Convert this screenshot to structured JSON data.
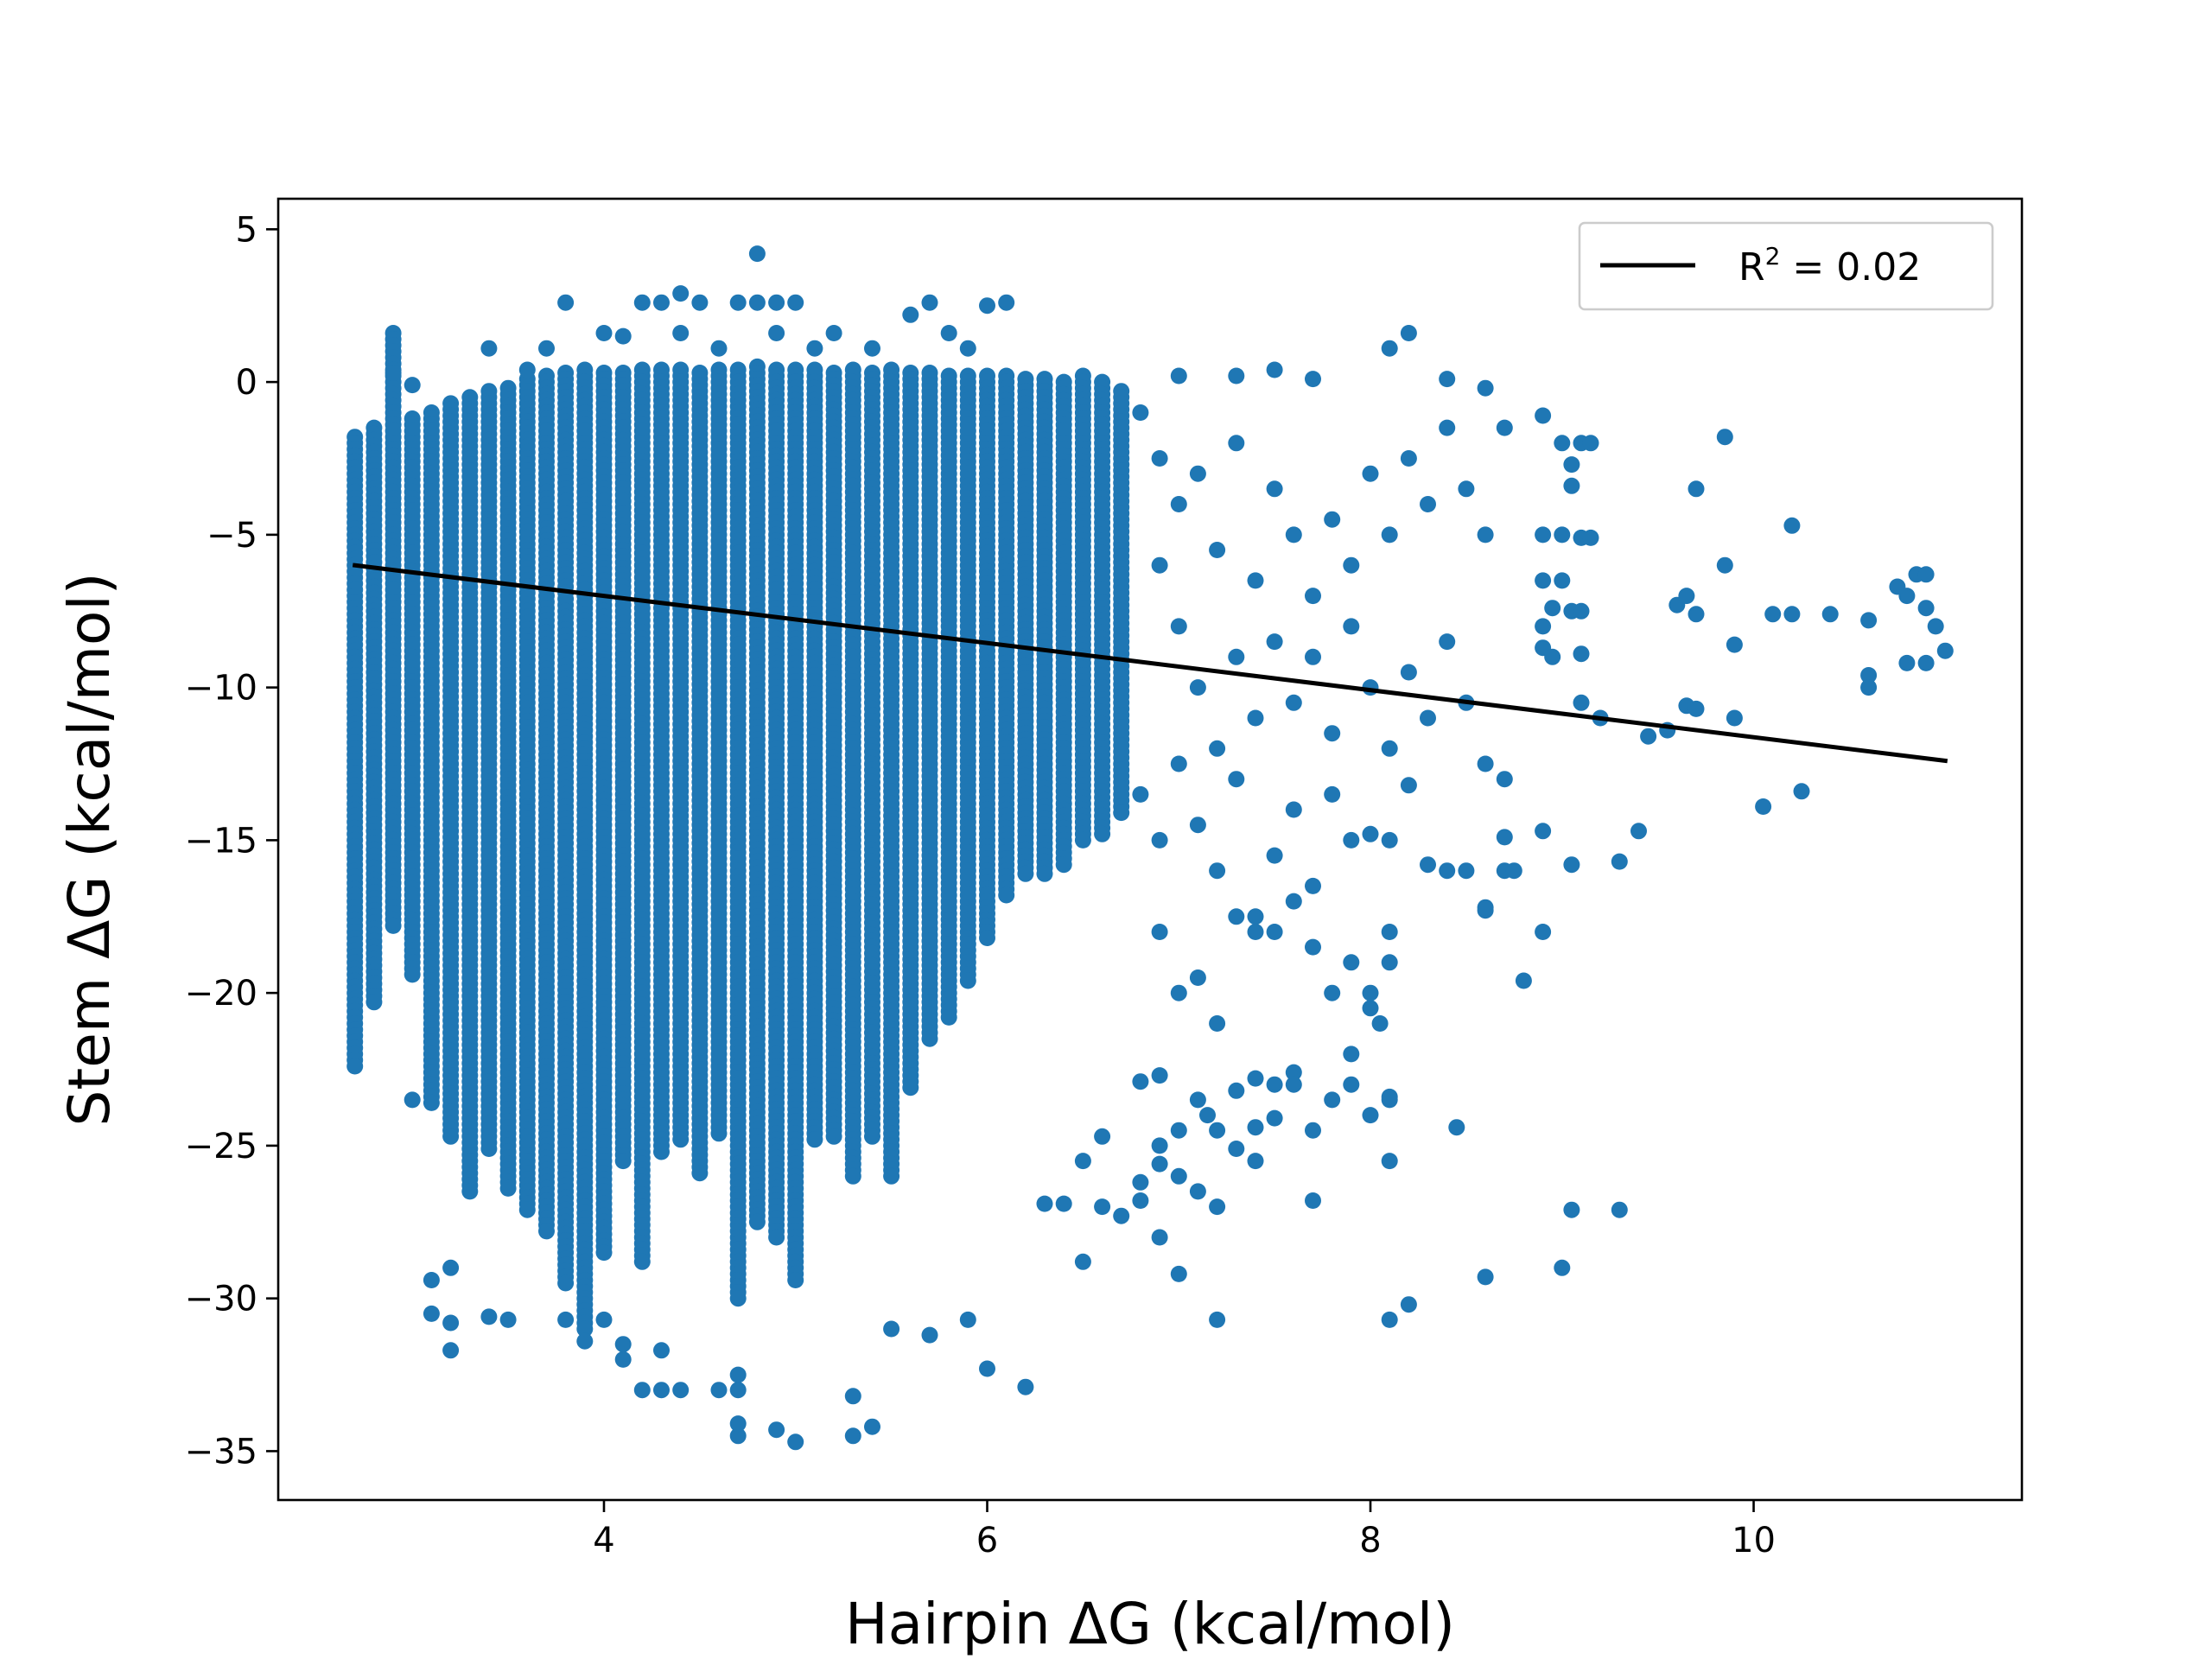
{
  "chart_data": {
    "type": "scatter",
    "title": "",
    "xlabel": "Hairpin ΔG (kcal/mol)",
    "ylabel": "Stem  ΔG (kcal/mol)",
    "xlim": [
      2.3,
      11.4
    ],
    "ylim": [
      -36.6,
      6.0
    ],
    "x_ticks": [
      4,
      6,
      8,
      10
    ],
    "y_ticks": [
      5,
      0,
      -5,
      -10,
      -15,
      -20,
      -25,
      -30,
      -35
    ],
    "x_tick_labels": [
      "4",
      "6",
      "8",
      "10"
    ],
    "y_tick_labels": [
      "5",
      "0",
      "−5",
      "−10",
      "−15",
      "−20",
      "−25",
      "−30",
      "−35"
    ],
    "grid": false,
    "legend_position": "top-right",
    "colors": {
      "points": "#1f77b4",
      "fit_line": "#000000",
      "frame": "#000000"
    },
    "fit_line": {
      "label_base": "R",
      "label_sup": "2",
      "label_rest": " = 0.02",
      "x": [
        2.7,
        11.0
      ],
      "y": [
        -6.0,
        -12.4
      ]
    },
    "columns": [
      {
        "x": 2.7,
        "ymin": -22.5,
        "ymax": -1.8
      },
      {
        "x": 2.8,
        "ymin": -20.4,
        "ymax": -1.5
      },
      {
        "x": 2.9,
        "ymin": -17.8,
        "ymax": 1.6
      },
      {
        "x": 3.0,
        "ymin": -19.5,
        "ymax": -1.2
      },
      {
        "x": 3.1,
        "ymin": -23.6,
        "ymax": -1.0
      },
      {
        "x": 3.2,
        "ymin": -24.8,
        "ymax": -0.7
      },
      {
        "x": 3.3,
        "ymin": -26.5,
        "ymax": -0.5
      },
      {
        "x": 3.4,
        "ymin": -25.2,
        "ymax": -0.3
      },
      {
        "x": 3.5,
        "ymin": -26.4,
        "ymax": -0.2
      },
      {
        "x": 3.6,
        "ymin": -27.2,
        "ymax": 0.1
      },
      {
        "x": 3.7,
        "ymin": -27.8,
        "ymax": 0.2
      },
      {
        "x": 3.8,
        "ymin": -29.5,
        "ymax": 0.3
      },
      {
        "x": 3.9,
        "ymin": -31.0,
        "ymax": 0.4
      },
      {
        "x": 4.0,
        "ymin": -28.6,
        "ymax": 0.3
      },
      {
        "x": 4.1,
        "ymin": -25.5,
        "ymax": 0.3
      },
      {
        "x": 4.2,
        "ymin": -28.8,
        "ymax": 0.4
      },
      {
        "x": 4.3,
        "ymin": -25.2,
        "ymax": 0.4
      },
      {
        "x": 4.4,
        "ymin": -24.8,
        "ymax": 0.4
      },
      {
        "x": 4.5,
        "ymin": -26.0,
        "ymax": 0.3
      },
      {
        "x": 4.6,
        "ymin": -24.6,
        "ymax": 0.4
      },
      {
        "x": 4.7,
        "ymin": -30.0,
        "ymax": 0.4
      },
      {
        "x": 4.8,
        "ymin": -27.5,
        "ymax": 0.5
      },
      {
        "x": 4.9,
        "ymin": -28.0,
        "ymax": 0.4
      },
      {
        "x": 5.0,
        "ymin": -29.5,
        "ymax": 0.4
      },
      {
        "x": 5.1,
        "ymin": -24.8,
        "ymax": 0.4
      },
      {
        "x": 5.2,
        "ymin": -24.8,
        "ymax": 0.3
      },
      {
        "x": 5.3,
        "ymin": -26.0,
        "ymax": 0.4
      },
      {
        "x": 5.4,
        "ymin": -24.8,
        "ymax": 0.3
      },
      {
        "x": 5.5,
        "ymin": -26.0,
        "ymax": 0.4
      },
      {
        "x": 5.6,
        "ymin": -23.2,
        "ymax": 0.3
      },
      {
        "x": 5.7,
        "ymin": -21.5,
        "ymax": 0.3
      },
      {
        "x": 5.8,
        "ymin": -20.8,
        "ymax": 0.2
      },
      {
        "x": 5.9,
        "ymin": -19.6,
        "ymax": 0.2
      },
      {
        "x": 6.0,
        "ymin": -18.2,
        "ymax": 0.2
      },
      {
        "x": 6.1,
        "ymin": -16.8,
        "ymax": 0.2
      },
      {
        "x": 6.2,
        "ymin": -16.2,
        "ymax": 0.1
      },
      {
        "x": 6.3,
        "ymin": -16.2,
        "ymax": 0.1
      },
      {
        "x": 6.4,
        "ymin": -15.8,
        "ymax": 0.0
      },
      {
        "x": 6.5,
        "ymin": -15.0,
        "ymax": 0.2
      },
      {
        "x": 6.6,
        "ymin": -14.8,
        "ymax": 0.0
      },
      {
        "x": 6.7,
        "ymin": -14.2,
        "ymax": -0.3
      }
    ],
    "points": [
      [
        2.9,
        0.3
      ],
      [
        3.0,
        -0.1
      ],
      [
        3.4,
        1.1
      ],
      [
        3.6,
        0.4
      ],
      [
        3.7,
        1.1
      ],
      [
        3.8,
        2.6
      ],
      [
        4.0,
        1.6
      ],
      [
        4.1,
        1.5
      ],
      [
        4.2,
        2.6
      ],
      [
        4.3,
        2.6
      ],
      [
        4.4,
        2.9
      ],
      [
        4.4,
        1.6
      ],
      [
        4.5,
        2.6
      ],
      [
        4.6,
        1.1
      ],
      [
        4.7,
        2.6
      ],
      [
        4.8,
        4.2
      ],
      [
        4.8,
        2.6
      ],
      [
        4.9,
        2.6
      ],
      [
        4.9,
        1.6
      ],
      [
        5.0,
        2.6
      ],
      [
        5.1,
        1.1
      ],
      [
        5.2,
        1.6
      ],
      [
        5.4,
        1.1
      ],
      [
        5.6,
        2.2
      ],
      [
        5.7,
        2.6
      ],
      [
        5.8,
        1.6
      ],
      [
        5.9,
        1.1
      ],
      [
        6.0,
        2.5
      ],
      [
        6.1,
        2.6
      ],
      [
        6.8,
        -1.0
      ],
      [
        6.9,
        -2.5
      ],
      [
        7.0,
        -4.0
      ],
      [
        7.1,
        -3.0
      ],
      [
        7.2,
        -5.5
      ],
      [
        7.3,
        -2.0
      ],
      [
        7.4,
        -6.5
      ],
      [
        7.5,
        -3.5
      ],
      [
        7.6,
        -5.0
      ],
      [
        7.7,
        -7.0
      ],
      [
        7.8,
        -4.5
      ],
      [
        7.9,
        -6.0
      ],
      [
        8.0,
        -3.0
      ],
      [
        8.1,
        -5.0
      ],
      [
        8.2,
        -2.5
      ],
      [
        8.3,
        -4.0
      ],
      [
        8.4,
        -1.5
      ],
      [
        8.5,
        -3.5
      ],
      [
        8.6,
        -5.0
      ],
      [
        8.7,
        -1.5
      ],
      [
        8.4,
        0.1
      ],
      [
        8.6,
        -0.2
      ],
      [
        8.1,
        1.1
      ],
      [
        8.2,
        1.6
      ],
      [
        7.5,
        0.4
      ],
      [
        7.7,
        0.1
      ],
      [
        7.0,
        0.2
      ],
      [
        7.3,
        0.2
      ],
      [
        6.9,
        -6.0
      ],
      [
        7.0,
        -8.0
      ],
      [
        7.1,
        -10.0
      ],
      [
        7.2,
        -12.0
      ],
      [
        7.3,
        -9.0
      ],
      [
        7.4,
        -11.0
      ],
      [
        7.5,
        -8.5
      ],
      [
        7.6,
        -10.5
      ],
      [
        7.7,
        -9.0
      ],
      [
        7.8,
        -11.5
      ],
      [
        7.9,
        -8.0
      ],
      [
        8.0,
        -10.0
      ],
      [
        8.1,
        -12.0
      ],
      [
        8.2,
        -9.5
      ],
      [
        8.3,
        -11.0
      ],
      [
        8.4,
        -8.5
      ],
      [
        8.5,
        -10.5
      ],
      [
        8.6,
        -12.5
      ],
      [
        8.7,
        -13.0
      ],
      [
        6.8,
        -13.5
      ],
      [
        6.9,
        -15.0
      ],
      [
        7.0,
        -12.5
      ],
      [
        7.1,
        -14.5
      ],
      [
        7.2,
        -16.0
      ],
      [
        7.3,
        -13.0
      ],
      [
        7.4,
        -17.5
      ],
      [
        7.5,
        -15.5
      ],
      [
        7.6,
        -14.0
      ],
      [
        7.7,
        -16.5
      ],
      [
        7.8,
        -13.5
      ],
      [
        7.9,
        -15.0
      ],
      [
        8.0,
        -14.8
      ],
      [
        8.1,
        -15.0
      ],
      [
        8.2,
        -13.2
      ],
      [
        8.3,
        -15.8
      ],
      [
        8.4,
        -16.0
      ],
      [
        8.5,
        -16.0
      ],
      [
        8.6,
        -17.3
      ],
      [
        8.7,
        -16.0
      ],
      [
        8.9,
        -14.7
      ],
      [
        6.9,
        -18.0
      ],
      [
        7.0,
        -20.0
      ],
      [
        7.1,
        -19.5
      ],
      [
        7.2,
        -21.0
      ],
      [
        7.3,
        -17.5
      ],
      [
        7.4,
        -18.0
      ],
      [
        7.5,
        -18.0
      ],
      [
        7.6,
        -17.0
      ],
      [
        7.7,
        -18.5
      ],
      [
        7.8,
        -20.0
      ],
      [
        7.9,
        -19.0
      ],
      [
        8.0,
        -20.5
      ],
      [
        6.8,
        -22.9
      ],
      [
        6.9,
        -22.7
      ],
      [
        7.0,
        -24.5
      ],
      [
        7.1,
        -23.5
      ],
      [
        7.2,
        -24.5
      ],
      [
        7.3,
        -23.2
      ],
      [
        7.4,
        -22.8
      ],
      [
        7.5,
        -23.0
      ],
      [
        7.6,
        -22.6
      ],
      [
        7.7,
        -24.5
      ],
      [
        7.8,
        -23.5
      ],
      [
        7.9,
        -23.0
      ],
      [
        8.0,
        -24.0
      ],
      [
        8.1,
        -23.5
      ],
      [
        6.5,
        -25.5
      ],
      [
        6.6,
        -27.0
      ],
      [
        6.7,
        -27.3
      ],
      [
        6.8,
        -26.8
      ],
      [
        6.9,
        -25.0
      ],
      [
        7.0,
        -29.2
      ],
      [
        7.1,
        -26.5
      ],
      [
        7.2,
        -27.0
      ],
      [
        6.5,
        -28.8
      ],
      [
        6.9,
        -28.0
      ],
      [
        7.2,
        -30.7
      ],
      [
        7.7,
        -26.8
      ],
      [
        8.1,
        -30.7
      ],
      [
        8.2,
        -30.2
      ],
      [
        8.1,
        -25.5
      ],
      [
        8.1,
        -23.4
      ],
      [
        8.45,
        -24.4
      ],
      [
        8.6,
        -29.3
      ],
      [
        9.0,
        -29.0
      ],
      [
        9.05,
        -27.1
      ],
      [
        9.3,
        -27.1
      ],
      [
        9.05,
        -15.8
      ],
      [
        9.3,
        -15.7
      ],
      [
        9.4,
        -14.7
      ],
      [
        9.2,
        -11.0
      ],
      [
        6.0,
        -32.3
      ],
      [
        6.2,
        -32.9
      ],
      [
        5.9,
        -30.7
      ],
      [
        5.7,
        -31.2
      ],
      [
        5.5,
        -31.0
      ],
      [
        5.4,
        -34.2
      ],
      [
        5.3,
        -34.5
      ],
      [
        5.3,
        -33.2
      ],
      [
        5.0,
        -34.7
      ],
      [
        4.9,
        -34.3
      ],
      [
        4.7,
        -34.5
      ],
      [
        4.7,
        -34.1
      ],
      [
        4.7,
        -33.0
      ],
      [
        4.7,
        -32.5
      ],
      [
        4.6,
        -33.0
      ],
      [
        4.4,
        -33.0
      ],
      [
        4.3,
        -33.0
      ],
      [
        4.2,
        -33.0
      ],
      [
        4.3,
        -31.7
      ],
      [
        4.1,
        -32.0
      ],
      [
        4.1,
        -31.5
      ],
      [
        4.0,
        -30.7
      ],
      [
        3.9,
        -31.4
      ],
      [
        3.8,
        -30.7
      ],
      [
        3.5,
        -30.7
      ],
      [
        3.4,
        -30.6
      ],
      [
        3.2,
        -31.7
      ],
      [
        3.2,
        -30.8
      ],
      [
        3.1,
        -30.5
      ],
      [
        3.1,
        -29.4
      ],
      [
        3.2,
        -29.0
      ],
      [
        3.0,
        -23.5
      ],
      [
        8.9,
        -1.1
      ],
      [
        9.0,
        -2.0
      ],
      [
        9.1,
        -2.0
      ],
      [
        9.15,
        -2.0
      ],
      [
        9.05,
        -2.7
      ],
      [
        9.05,
        -3.4
      ],
      [
        9.0,
        -5.0
      ],
      [
        8.9,
        -5.0
      ],
      [
        9.1,
        -5.1
      ],
      [
        9.15,
        -5.1
      ],
      [
        8.9,
        -6.5
      ],
      [
        9.0,
        -6.5
      ],
      [
        8.95,
        -7.4
      ],
      [
        9.05,
        -7.5
      ],
      [
        9.1,
        -7.5
      ],
      [
        8.9,
        -8.0
      ],
      [
        8.9,
        -8.7
      ],
      [
        8.95,
        -9.0
      ],
      [
        9.1,
        -8.9
      ],
      [
        9.1,
        -10.5
      ],
      [
        9.45,
        -11.6
      ],
      [
        9.55,
        -11.4
      ],
      [
        9.65,
        -10.6
      ],
      [
        9.7,
        -10.7
      ],
      [
        9.9,
        -11.0
      ],
      [
        9.6,
        -7.3
      ],
      [
        9.65,
        -7.0
      ],
      [
        9.7,
        -7.6
      ],
      [
        9.85,
        -6.0
      ],
      [
        9.9,
        -8.6
      ],
      [
        9.85,
        -1.8
      ],
      [
        9.7,
        -3.5
      ],
      [
        10.2,
        -4.7
      ],
      [
        10.05,
        -13.9
      ],
      [
        10.25,
        -13.4
      ],
      [
        10.1,
        -7.6
      ],
      [
        10.2,
        -7.6
      ],
      [
        10.4,
        -7.6
      ],
      [
        10.6,
        -7.8
      ],
      [
        10.75,
        -6.7
      ],
      [
        10.8,
        -7.0
      ],
      [
        10.85,
        -6.3
      ],
      [
        10.9,
        -6.3
      ],
      [
        10.9,
        -7.4
      ],
      [
        10.95,
        -8.0
      ],
      [
        10.6,
        -9.6
      ],
      [
        10.6,
        -10.0
      ],
      [
        10.8,
        -9.2
      ],
      [
        10.9,
        -9.2
      ],
      [
        11.0,
        -8.8
      ],
      [
        8.7,
        -14.9
      ],
      [
        8.75,
        -16.0
      ],
      [
        8.8,
        -19.6
      ],
      [
        8.6,
        -17.2
      ],
      [
        8.9,
        -18.0
      ],
      [
        8.1,
        -18.0
      ],
      [
        8.1,
        -19.0
      ],
      [
        8.0,
        -20.0
      ],
      [
        8.05,
        -21.0
      ],
      [
        7.9,
        -22.0
      ],
      [
        7.4,
        -24.4
      ],
      [
        7.5,
        -24.1
      ],
      [
        7.6,
        -23.0
      ],
      [
        7.3,
        -25.1
      ],
      [
        7.4,
        -25.5
      ],
      [
        7.15,
        -24.0
      ],
      [
        7.0,
        -26.0
      ],
      [
        6.9,
        -25.6
      ],
      [
        6.8,
        -26.2
      ],
      [
        6.6,
        -24.7
      ],
      [
        6.4,
        -26.9
      ],
      [
        6.3,
        -26.9
      ]
    ]
  }
}
